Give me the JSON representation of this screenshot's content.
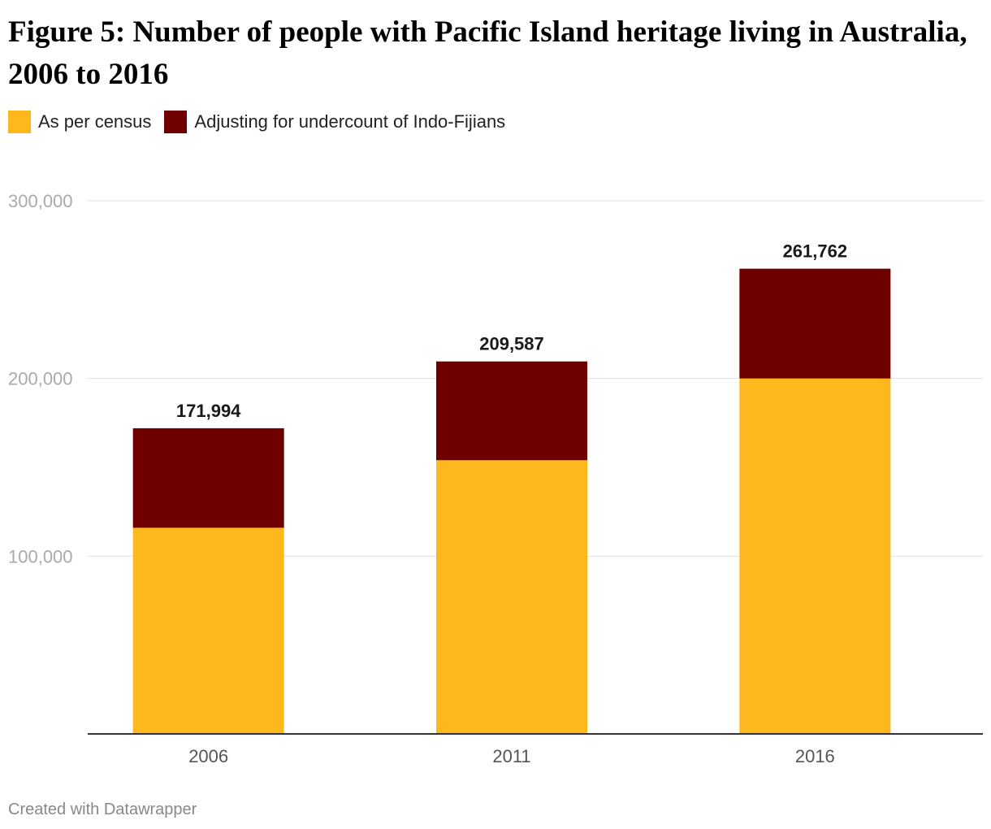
{
  "title": "Figure 5: Number of people with Pacific Island heritage living in Australia, 2006 to 2016",
  "credit": "Created with Datawrapper",
  "chart_data": {
    "type": "bar",
    "stacked": true,
    "categories": [
      "2006",
      "2011",
      "2016"
    ],
    "series": [
      {
        "name": "As per census",
        "color": "#fdb81e",
        "values": [
          116000,
          154000,
          200000
        ]
      },
      {
        "name": "Adjusting for undercount of Indo-Fijians",
        "color": "#6e0000",
        "values": [
          55994,
          55587,
          61762
        ]
      }
    ],
    "totals": [
      171994,
      209587,
      261762
    ],
    "total_labels": [
      "171,994",
      "209,587",
      "261,762"
    ],
    "yticks": [
      100000,
      200000,
      300000
    ],
    "ytick_labels": [
      "100,000",
      "200,000",
      "300,000"
    ],
    "ylim": [
      0,
      300000
    ],
    "grid": true,
    "legend_position": "top-left"
  }
}
